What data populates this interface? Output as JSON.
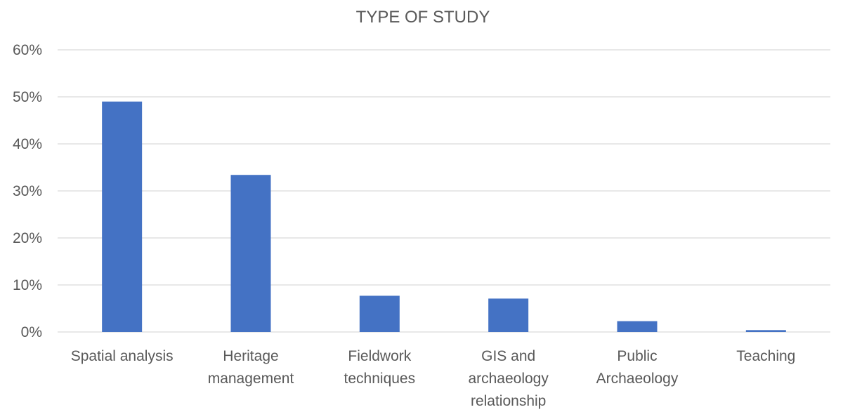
{
  "chart_data": {
    "type": "bar",
    "title": "TYPE OF STUDY",
    "xlabel": "",
    "ylabel": "",
    "categories": [
      "Spatial analysis",
      "Heritage management",
      "Fieldwork techniques",
      "GIS and archaeology relationship",
      "Public Archaeology",
      "Teaching"
    ],
    "category_lines": [
      [
        "Spatial analysis"
      ],
      [
        "Heritage",
        "management"
      ],
      [
        "Fieldwork",
        "techniques"
      ],
      [
        "GIS and",
        "archaeology",
        "relationship"
      ],
      [
        "Public",
        "Archaeology"
      ],
      [
        "Teaching"
      ]
    ],
    "values": [
      0.49,
      0.334,
      0.077,
      0.071,
      0.023,
      0.004
    ],
    "ylim": [
      0,
      0.6
    ],
    "yticks": [
      0,
      0.1,
      0.2,
      0.3,
      0.4,
      0.5,
      0.6
    ],
    "ytick_labels": [
      "0%",
      "10%",
      "20%",
      "30%",
      "40%",
      "50%",
      "60%"
    ],
    "bar_color": "#4472c4",
    "grid": true,
    "legend": "none"
  }
}
